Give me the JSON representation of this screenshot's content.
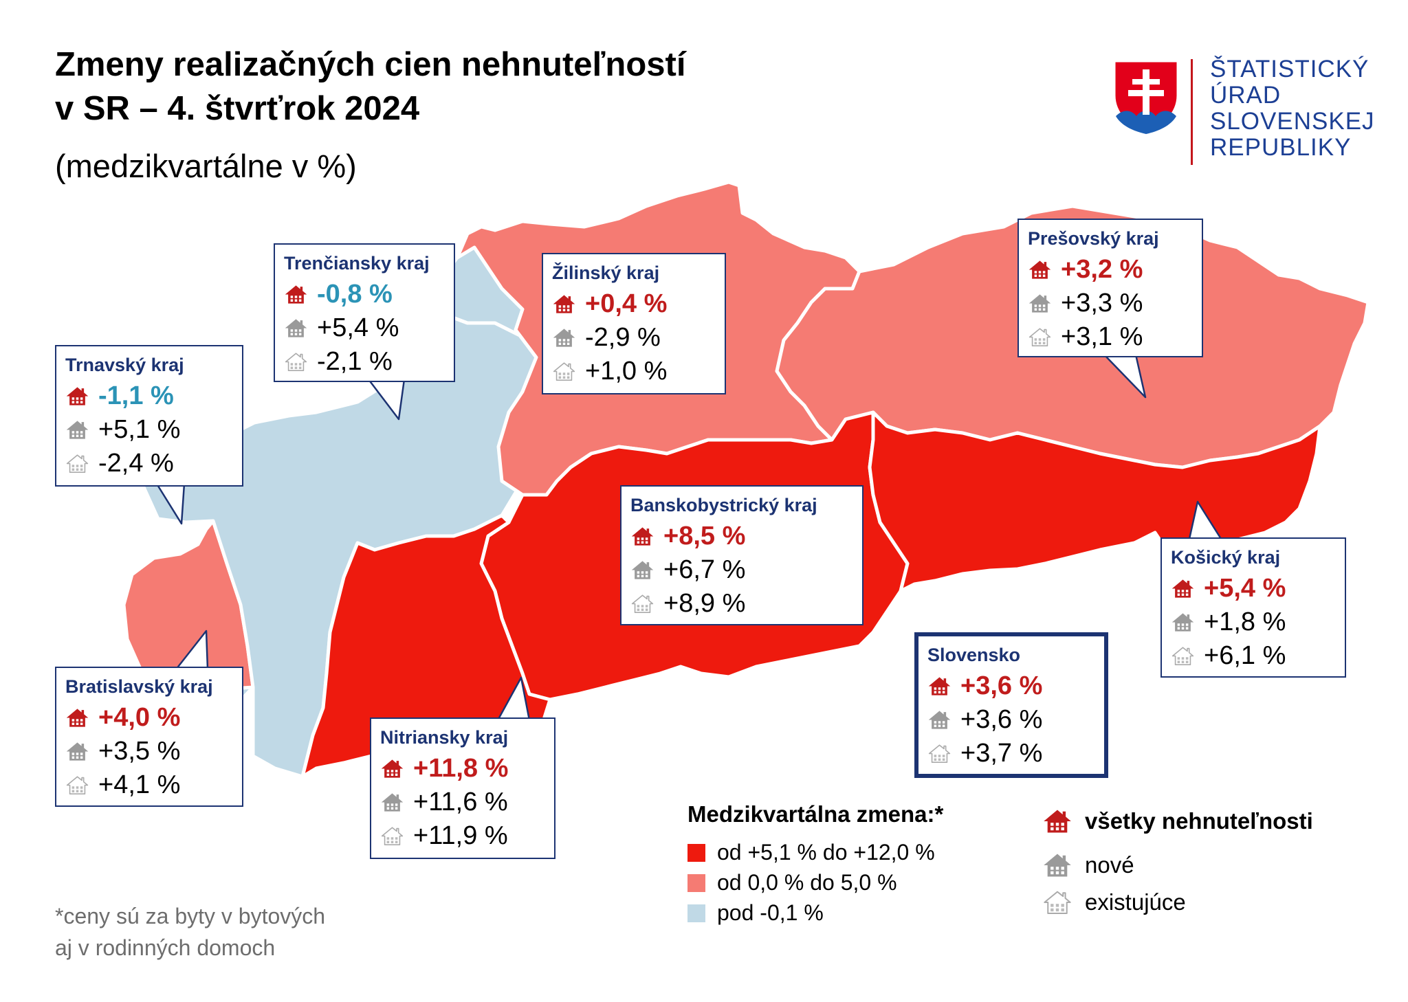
{
  "title": {
    "line1": "Zmeny realizačných cien nehnuteľností",
    "line2": "v SR – 4. štvrťrok 2024",
    "subtitle": "(medzikvartálne v %)"
  },
  "logo": {
    "line1": "ŠTATISTICKÝ",
    "line2": "ÚRAD",
    "line3": "SLOVENSKEJ",
    "line4": "REPUBLIKY"
  },
  "colors": {
    "high": "#ee1a0e",
    "mid": "#f57b73",
    "low": "#c0d9e6",
    "region_border": "#ffffff",
    "box_border": "#1c3372",
    "value_positive": "#c01c1c",
    "value_negative": "#2b93b6",
    "icon_all": "#c01c1c",
    "icon_new": "#9a9a9a",
    "icon_existing": "#aaaaaa"
  },
  "regions": {
    "trnavsky": {
      "name": "Trnavský kraj",
      "all": "-1,1 %",
      "new": "+5,1 %",
      "existing": "-2,4 %",
      "class": "low"
    },
    "trenciansky": {
      "name": "Trenčiansky kraj",
      "all": "-0,8 %",
      "new": "+5,4 %",
      "existing": "-2,1 %",
      "class": "low"
    },
    "zilinsky": {
      "name": "Žilinský kraj",
      "all": "+0,4 %",
      "new": "-2,9 %",
      "existing": "+1,0 %",
      "class": "mid"
    },
    "presovsky": {
      "name": "Prešovský kraj",
      "all": "+3,2 %",
      "new": "+3,3 %",
      "existing": "+3,1 %",
      "class": "mid"
    },
    "banskobystricky": {
      "name": "Banskobystrický kraj",
      "all": "+8,5 %",
      "new": "+6,7 %",
      "existing": "+8,9 %",
      "class": "high"
    },
    "kosicky": {
      "name": "Košický kraj",
      "all": "+5,4 %",
      "new": "+1,8 %",
      "existing": "+6,1 %",
      "class": "high"
    },
    "bratislavsky": {
      "name": "Bratislavský kraj",
      "all": "+4,0 %",
      "new": "+3,5 %",
      "existing": "+4,1 %",
      "class": "mid"
    },
    "nitriansky": {
      "name": "Nitriansky kraj",
      "all": "+11,8 %",
      "new": "+11,6 %",
      "existing": "+11,9 %",
      "class": "high"
    },
    "slovensko": {
      "name": "Slovensko",
      "all": "+3,6 %",
      "new": "+3,6 %",
      "existing": "+3,7 %"
    }
  },
  "legend": {
    "title": "Medzikvartálna zmena:*",
    "high": "od +5,1 % do +12,0 %",
    "mid": "od 0,0 % do 5,0 %",
    "low": "pod -0,1 %"
  },
  "icon_legend": {
    "all": "všetky nehnuteľnosti",
    "new": "nové",
    "existing": "existujúce"
  },
  "footnote": {
    "line1": "*ceny sú za byty v bytových",
    "line2": "aj v rodinných domoch"
  }
}
